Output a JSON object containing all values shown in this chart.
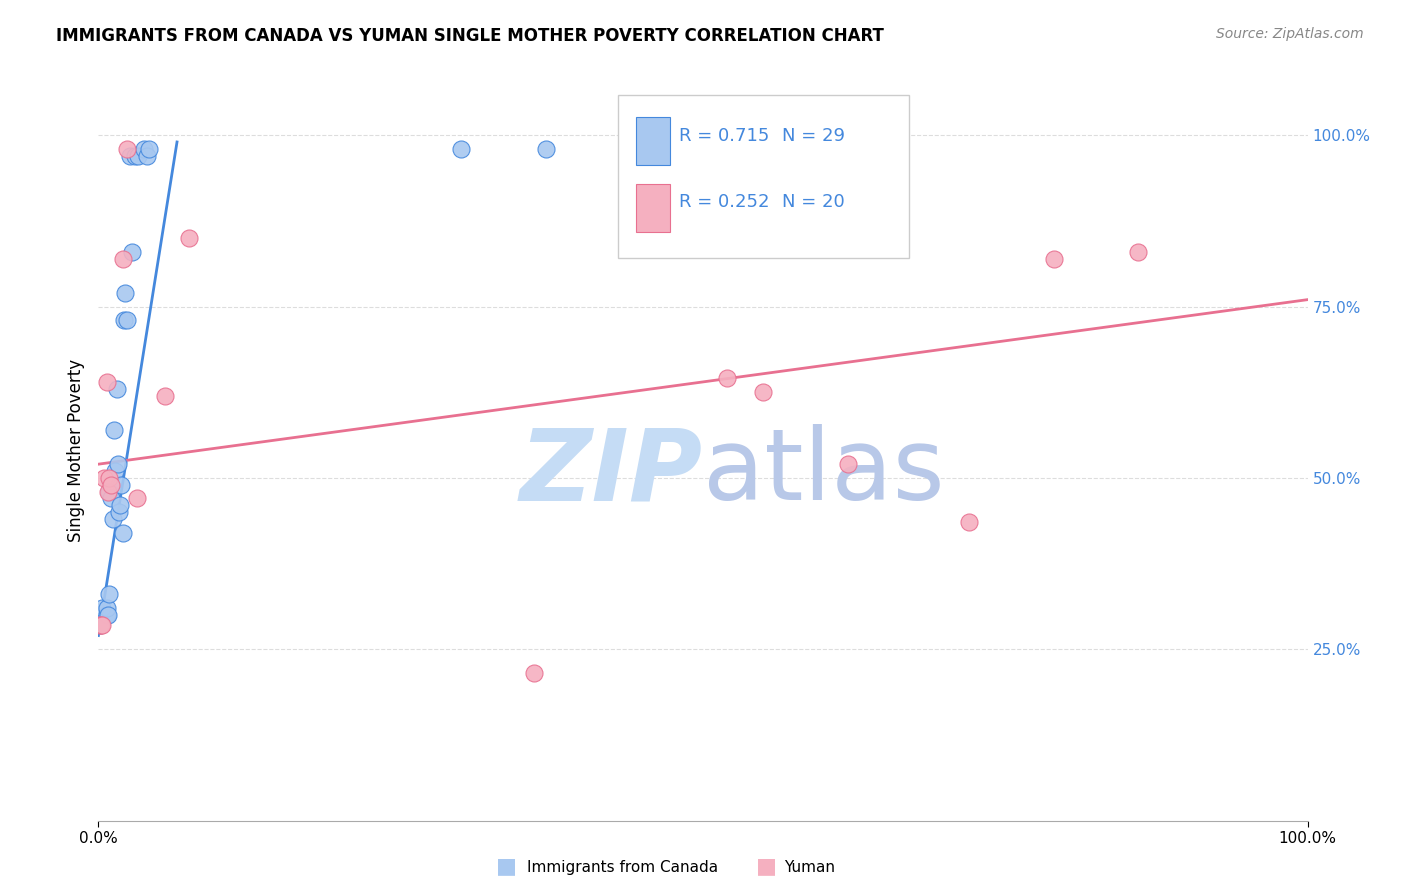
{
  "title": "IMMIGRANTS FROM CANADA VS YUMAN SINGLE MOTHER POVERTY CORRELATION CHART",
  "source": "Source: ZipAtlas.com",
  "ylabel": "Single Mother Poverty",
  "legend_label1": "Immigrants from Canada",
  "legend_label2": "Yuman",
  "legend_r1": "R = 0.715",
  "legend_n1": "N = 29",
  "legend_r2": "R = 0.252",
  "legend_n2": "N = 20",
  "color_blue": "#A8C8F0",
  "color_pink": "#F5B0C0",
  "line_blue": "#4488DD",
  "line_pink": "#E87090",
  "text_blue": "#4488DD",
  "watermark_color": "#D8E8F8",
  "watermark": "ZIPatlas",
  "grid_color": "#DDDDDD",
  "blue_x": [
    0.001,
    0.003,
    0.007,
    0.007,
    0.008,
    0.009,
    0.009,
    0.01,
    0.012,
    0.013,
    0.014,
    0.015,
    0.016,
    0.017,
    0.018,
    0.019,
    0.02,
    0.021,
    0.022,
    0.024,
    0.026,
    0.028,
    0.03,
    0.033,
    0.038,
    0.04,
    0.042,
    0.3,
    0.37
  ],
  "blue_y": [
    0.285,
    0.31,
    0.3,
    0.31,
    0.3,
    0.33,
    0.48,
    0.47,
    0.44,
    0.57,
    0.51,
    0.63,
    0.52,
    0.45,
    0.46,
    0.49,
    0.42,
    0.73,
    0.77,
    0.73,
    0.97,
    0.83,
    0.97,
    0.97,
    0.98,
    0.97,
    0.98,
    0.98,
    0.98
  ],
  "pink_x": [
    0.001,
    0.002,
    0.003,
    0.005,
    0.007,
    0.008,
    0.009,
    0.01,
    0.02,
    0.024,
    0.032,
    0.055,
    0.075,
    0.36,
    0.52,
    0.55,
    0.62,
    0.72,
    0.79,
    0.86
  ],
  "pink_y": [
    0.285,
    0.285,
    0.285,
    0.5,
    0.64,
    0.48,
    0.5,
    0.49,
    0.82,
    0.98,
    0.47,
    0.62,
    0.85,
    0.215,
    0.645,
    0.625,
    0.52,
    0.435,
    0.82,
    0.83
  ],
  "blue_line_x": [
    0.0,
    0.065
  ],
  "blue_line_y_start": 0.27,
  "blue_line_y_end": 0.99,
  "pink_line_x": [
    0.0,
    1.0
  ],
  "pink_line_y_start": 0.52,
  "pink_line_y_end": 0.76,
  "xlim": [
    0.0,
    1.0
  ],
  "ylim": [
    0.0,
    1.08
  ],
  "yticks_right": [
    0.25,
    0.5,
    0.75,
    1.0
  ],
  "ytick_labels_right": [
    "25.0%",
    "50.0%",
    "75.0%",
    "100.0%"
  ],
  "xticks": [
    0.0,
    1.0
  ],
  "xtick_labels": [
    "0.0%",
    "100.0%"
  ]
}
